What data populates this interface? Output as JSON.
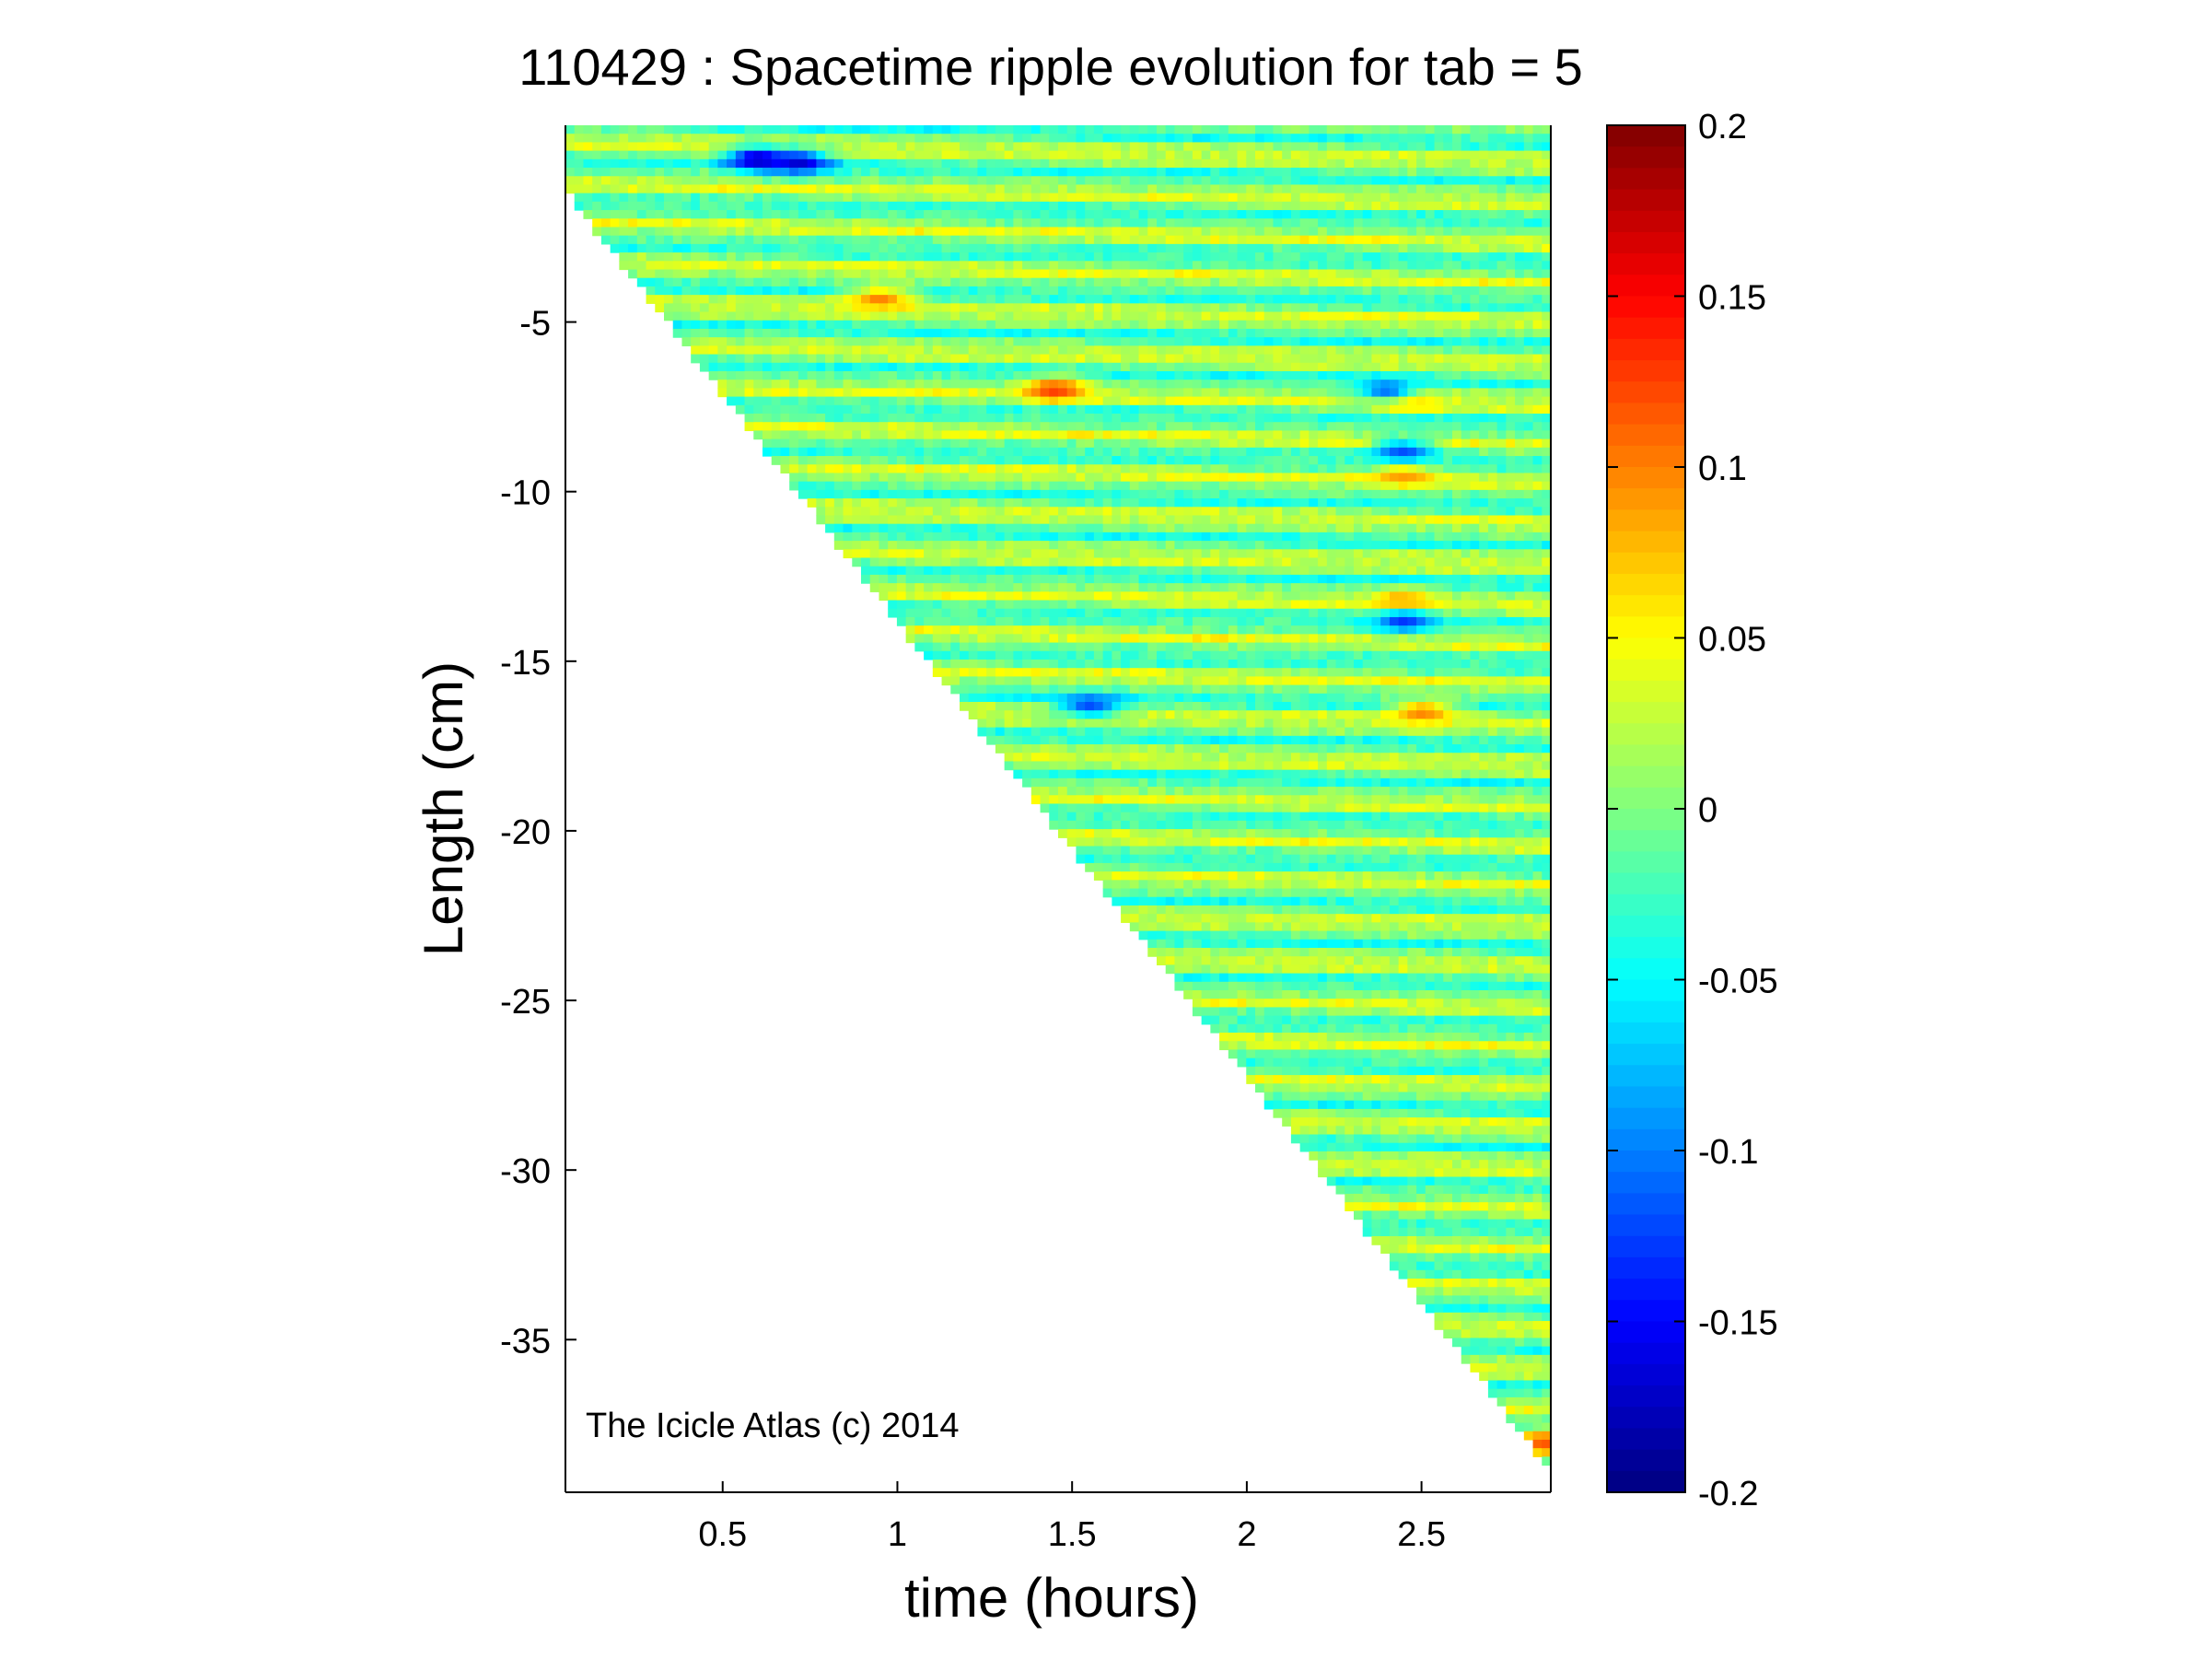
{
  "chart_data": {
    "type": "heatmap",
    "title": "110429 : Spacetime ripple evolution for tab = 5",
    "xlabel": "time (hours)",
    "ylabel": "Length (cm)",
    "xlim": [
      0.05,
      2.87
    ],
    "ylim": [
      -39.5,
      0.8
    ],
    "xticks": [
      0.5,
      1,
      1.5,
      2,
      2.5
    ],
    "xtick_labels": [
      "0.5",
      "1",
      "1.5",
      "2",
      "2.5"
    ],
    "yticks": [
      -5,
      -10,
      -15,
      -20,
      -25,
      -30,
      -35
    ],
    "ytick_labels": [
      "-5",
      "-10",
      "-15",
      "-20",
      "-25",
      "-30",
      "-35"
    ],
    "colorbar": {
      "colormap": "jet",
      "clim": [
        -0.2,
        0.2
      ],
      "ticks": [
        0.2,
        0.15,
        0.1,
        0.05,
        0,
        -0.05,
        -0.1,
        -0.15,
        -0.2
      ],
      "tick_labels": [
        "0.2",
        "0.15",
        "0.1",
        "0.05",
        "0",
        "-0.05",
        "-0.1",
        "-0.15",
        "-0.2"
      ]
    },
    "data_boundary": {
      "description_units": "icicle tip length grows linearly with time; no data below the tip",
      "start": {
        "time": 0.05,
        "length": -1.0
      },
      "end": {
        "time": 2.85,
        "length": -38.5
      }
    },
    "notable_features": [
      {
        "time": 0.6,
        "length": -0.2,
        "value": -0.18
      },
      {
        "time": 0.72,
        "length": -0.3,
        "value": -0.17
      },
      {
        "time": 1.45,
        "length": -7.0,
        "value": 0.13
      },
      {
        "time": 0.95,
        "length": -4.3,
        "value": 0.1
      },
      {
        "time": 2.45,
        "length": -13.3,
        "value": 0.11
      },
      {
        "time": 2.45,
        "length": -13.8,
        "value": -0.13
      },
      {
        "time": 2.45,
        "length": -9.5,
        "value": 0.09
      },
      {
        "time": 2.45,
        "length": -8.8,
        "value": -0.12
      },
      {
        "time": 2.5,
        "length": -16.5,
        "value": 0.1
      },
      {
        "time": 2.45,
        "length": -7.3,
        "value": 0.1
      },
      {
        "time": 2.4,
        "length": -7.0,
        "value": -0.11
      },
      {
        "time": 1.55,
        "length": -16.3,
        "value": -0.12
      },
      {
        "time": 2.85,
        "length": -38.0,
        "value": 0.12
      }
    ],
    "annotation": "The Icicle Atlas (c) 2014"
  }
}
